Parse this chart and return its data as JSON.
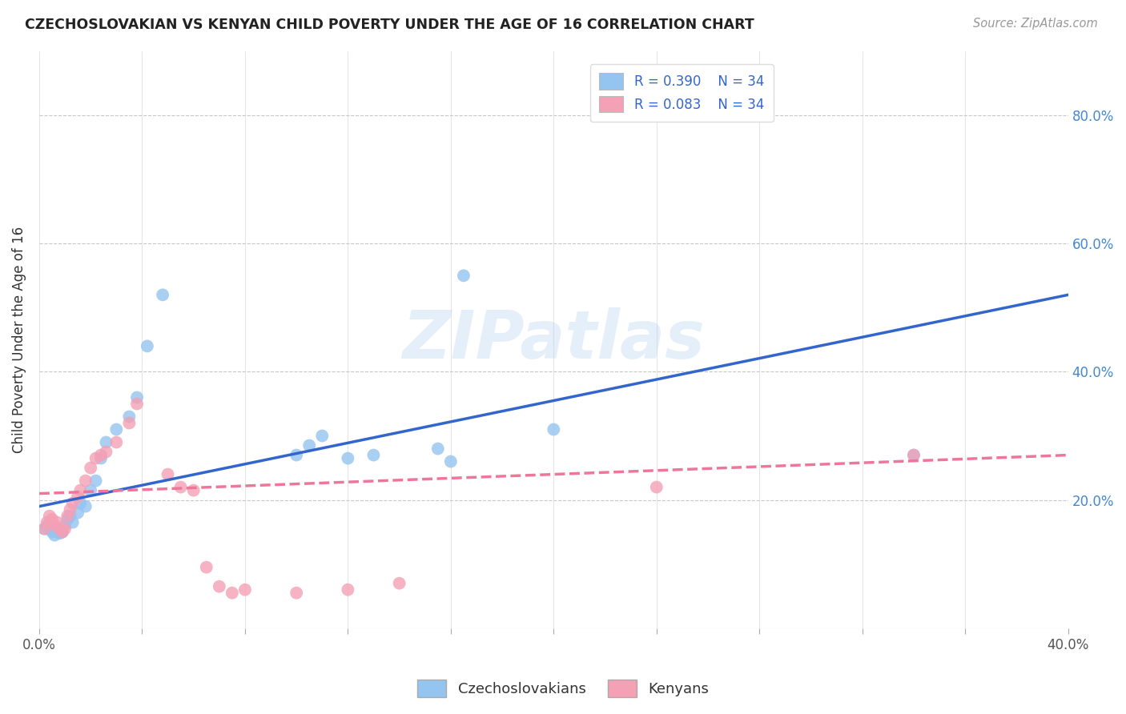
{
  "title": "CZECHOSLOVAKIAN VS KENYAN CHILD POVERTY UNDER THE AGE OF 16 CORRELATION CHART",
  "source": "Source: ZipAtlas.com",
  "ylabel": "Child Poverty Under the Age of 16",
  "xlim": [
    0.0,
    0.4
  ],
  "ylim": [
    0.0,
    0.9
  ],
  "x_ticks": [
    0.0,
    0.04,
    0.08,
    0.12,
    0.16,
    0.2,
    0.24,
    0.28,
    0.32,
    0.36,
    0.4
  ],
  "y_ticks": [
    0.0,
    0.2,
    0.4,
    0.6,
    0.8
  ],
  "x_tick_labels": [
    "0.0%",
    "",
    "",
    "",
    "",
    "",
    "",
    "",
    "",
    "",
    "40.0%"
  ],
  "y_tick_labels": [
    "",
    "20.0%",
    "40.0%",
    "60.0%",
    "80.0%"
  ],
  "background_color": "#ffffff",
  "grid_color": "#c8c8c8",
  "legend_R_czech": "R = 0.390",
  "legend_N_czech": "N = 34",
  "legend_R_kenyan": "R = 0.083",
  "legend_N_kenyan": "N = 34",
  "czech_color": "#94c4f0",
  "kenyan_color": "#f4a0b5",
  "czech_line_color": "#3366cc",
  "kenyan_line_color": "#ee7799",
  "watermark": "ZIPatlas",
  "czech_x": [
    0.002,
    0.003,
    0.004,
    0.005,
    0.006,
    0.007,
    0.008,
    0.009,
    0.01,
    0.011,
    0.012,
    0.013,
    0.015,
    0.016,
    0.018,
    0.02,
    0.022,
    0.024,
    0.026,
    0.03,
    0.035,
    0.038,
    0.042,
    0.048,
    0.1,
    0.105,
    0.11,
    0.12,
    0.13,
    0.155,
    0.16,
    0.165,
    0.2,
    0.34
  ],
  "czech_y": [
    0.155,
    0.16,
    0.155,
    0.15,
    0.145,
    0.155,
    0.148,
    0.15,
    0.16,
    0.17,
    0.175,
    0.165,
    0.18,
    0.195,
    0.19,
    0.215,
    0.23,
    0.265,
    0.29,
    0.31,
    0.33,
    0.36,
    0.44,
    0.52,
    0.27,
    0.285,
    0.3,
    0.265,
    0.27,
    0.28,
    0.26,
    0.55,
    0.31,
    0.27
  ],
  "kenyan_x": [
    0.002,
    0.003,
    0.004,
    0.005,
    0.006,
    0.007,
    0.008,
    0.009,
    0.01,
    0.011,
    0.012,
    0.013,
    0.015,
    0.016,
    0.018,
    0.02,
    0.022,
    0.024,
    0.026,
    0.03,
    0.035,
    0.038,
    0.05,
    0.055,
    0.06,
    0.065,
    0.07,
    0.075,
    0.08,
    0.1,
    0.12,
    0.14,
    0.24,
    0.34
  ],
  "kenyan_y": [
    0.155,
    0.165,
    0.175,
    0.17,
    0.16,
    0.165,
    0.155,
    0.15,
    0.155,
    0.175,
    0.185,
    0.195,
    0.205,
    0.215,
    0.23,
    0.25,
    0.265,
    0.27,
    0.275,
    0.29,
    0.32,
    0.35,
    0.24,
    0.22,
    0.215,
    0.095,
    0.065,
    0.055,
    0.06,
    0.055,
    0.06,
    0.07,
    0.22,
    0.27
  ],
  "czech_line_x0": 0.0,
  "czech_line_y0": 0.19,
  "czech_line_x1": 0.4,
  "czech_line_y1": 0.52,
  "kenyan_line_x0": 0.0,
  "kenyan_line_y0": 0.21,
  "kenyan_line_x1": 0.4,
  "kenyan_line_y1": 0.27
}
